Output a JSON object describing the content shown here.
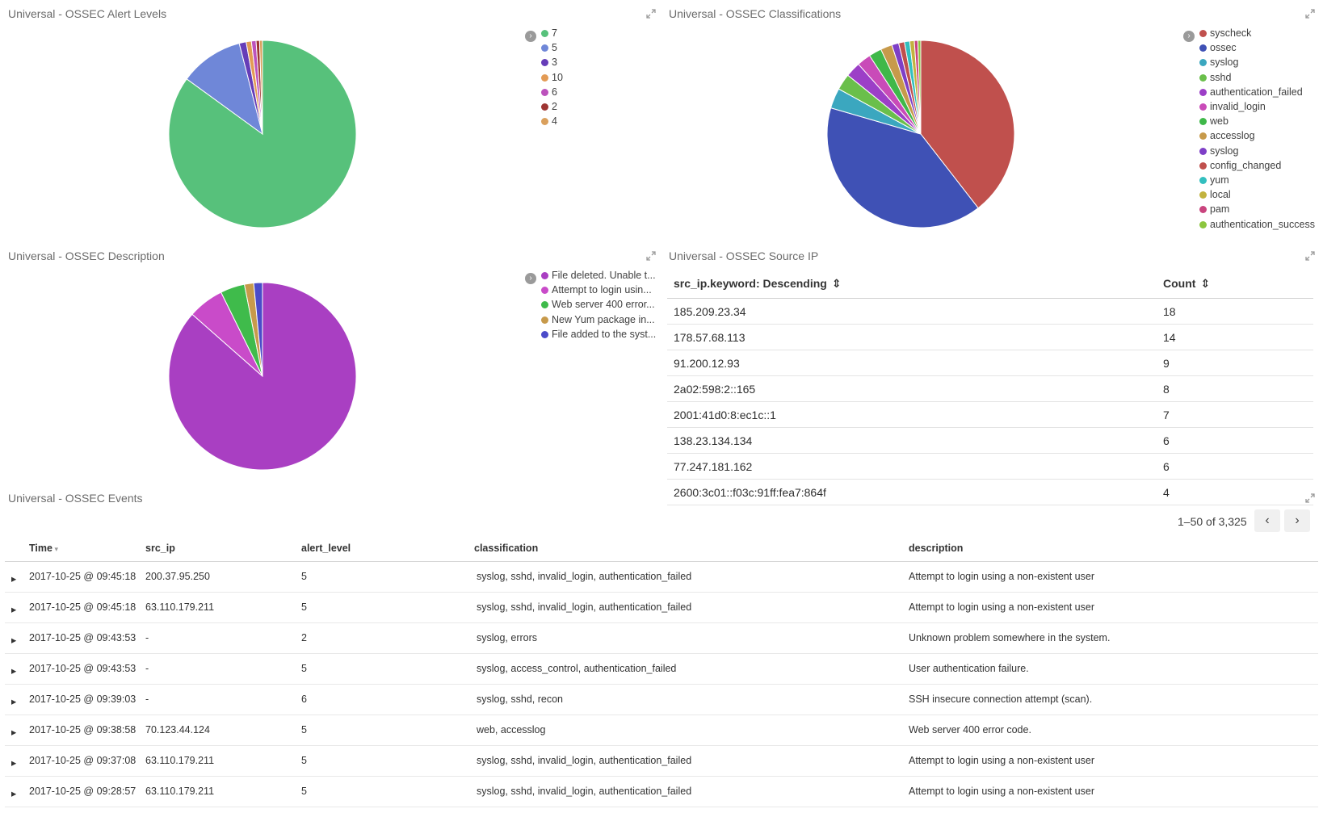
{
  "panels": {
    "alert_levels": {
      "title": "Universal - OSSEC Alert Levels"
    },
    "classifications": {
      "title": "Universal - OSSEC Classifications"
    },
    "description": {
      "title": "Universal - OSSEC Description"
    },
    "source_ip": {
      "title": "Universal - OSSEC Source IP"
    },
    "events": {
      "title": "Universal - OSSEC Events"
    }
  },
  "chart_data": [
    {
      "type": "pie",
      "panel": "alert_levels",
      "labels": [
        "7",
        "5",
        "3",
        "10",
        "6",
        "2",
        "4"
      ],
      "values": [
        85.0,
        11.0,
        1.2,
        0.9,
        0.8,
        0.6,
        0.5
      ],
      "colors": [
        "#57c17b",
        "#6f87d8",
        "#663db8",
        "#e39b55",
        "#bc52bc",
        "#9e3533",
        "#daa05d"
      ]
    },
    {
      "type": "pie",
      "panel": "classifications",
      "labels": [
        "syscheck",
        "ossec",
        "syslog",
        "sshd",
        "authentication_failed",
        "invalid_login",
        "web",
        "accesslog",
        "syslog",
        "config_changed",
        "yum",
        "local",
        "pam",
        "authentication_success"
      ],
      "values": [
        39.5,
        40.0,
        3.5,
        2.8,
        2.6,
        2.4,
        2.2,
        2.0,
        1.2,
        1.0,
        0.9,
        0.8,
        0.6,
        0.5
      ],
      "colors": [
        "#c0504d",
        "#3f51b5",
        "#3ba7bf",
        "#6abf4b",
        "#9c3fc7",
        "#c94bb8",
        "#3fb849",
        "#c79a4b",
        "#7e3fc7",
        "#c0504d",
        "#33bfbf",
        "#c2b33f",
        "#c9447e",
        "#8cc63f"
      ]
    },
    {
      "type": "pie",
      "panel": "description",
      "labels": [
        "File deleted. Unable t...",
        "Attempt to login usin...",
        "Web server 400 error...",
        "New Yum package in...",
        "File added to the syst..."
      ],
      "values": [
        86.5,
        6.2,
        4.2,
        1.6,
        1.5
      ],
      "colors": [
        "#a93fc2",
        "#c94bc9",
        "#3fbb4b",
        "#c79a4b",
        "#4b4bc9"
      ]
    }
  ],
  "ui": {
    "legend_toggle_icon": "chevron-right-icon",
    "expand_icon": "expand-icon"
  },
  "source_ip_table": {
    "col_ip": "src_ip.keyword: Descending",
    "col_count": "Count",
    "rows": [
      {
        "ip": "185.209.23.34",
        "count": "18"
      },
      {
        "ip": "178.57.68.113",
        "count": "14"
      },
      {
        "ip": "91.200.12.93",
        "count": "9"
      },
      {
        "ip": "2a02:598:2::165",
        "count": "8"
      },
      {
        "ip": "2001:41d0:8:ec1c::1",
        "count": "7"
      },
      {
        "ip": "138.23.134.134",
        "count": "6"
      },
      {
        "ip": "77.247.181.162",
        "count": "6"
      },
      {
        "ip": "2600:3c01::f03c:91ff:fea7:864f",
        "count": "4"
      }
    ]
  },
  "events": {
    "pager_text": "1–50 of 3,325",
    "headers": {
      "time": "Time",
      "src_ip": "src_ip",
      "alert_level": "alert_level",
      "classification": "classification",
      "description": "description"
    },
    "rows": [
      {
        "time": "2017-10-25 @ 09:45:18",
        "src_ip": "200.37.95.250",
        "level": "5",
        "classification": "syslog, sshd, invalid_login, authentication_failed",
        "description": "Attempt to login using a non-existent user"
      },
      {
        "time": "2017-10-25 @ 09:45:18",
        "src_ip": "63.110.179.211",
        "level": "5",
        "classification": "syslog, sshd, invalid_login, authentication_failed",
        "description": "Attempt to login using a non-existent user"
      },
      {
        "time": "2017-10-25 @ 09:43:53",
        "src_ip": "-",
        "level": "2",
        "classification": "syslog, errors",
        "description": "Unknown problem somewhere in the system."
      },
      {
        "time": "2017-10-25 @ 09:43:53",
        "src_ip": "-",
        "level": "5",
        "classification": "syslog, access_control, authentication_failed",
        "description": "User authentication failure."
      },
      {
        "time": "2017-10-25 @ 09:39:03",
        "src_ip": "-",
        "level": "6",
        "classification": "syslog, sshd, recon",
        "description": "SSH insecure connection attempt (scan)."
      },
      {
        "time": "2017-10-25 @ 09:38:58",
        "src_ip": "70.123.44.124",
        "level": "5",
        "classification": "web, accesslog",
        "description": "Web server 400 error code."
      },
      {
        "time": "2017-10-25 @ 09:37:08",
        "src_ip": "63.110.179.211",
        "level": "5",
        "classification": "syslog, sshd, invalid_login, authentication_failed",
        "description": "Attempt to login using a non-existent user"
      },
      {
        "time": "2017-10-25 @ 09:28:57",
        "src_ip": "63.110.179.211",
        "level": "5",
        "classification": "syslog, sshd, invalid_login, authentication_failed",
        "description": "Attempt to login using a non-existent user"
      }
    ]
  }
}
